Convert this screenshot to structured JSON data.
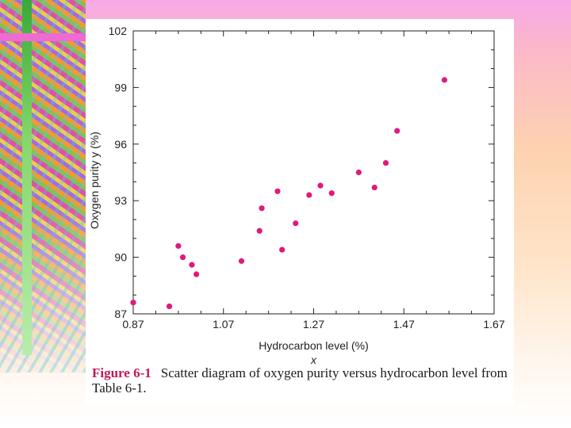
{
  "chart_data": {
    "type": "scatter",
    "xlabel": "Hydrocarbon level (%)",
    "xvar": "x",
    "ylabel": "Oxygen purity y (%)",
    "xlim": [
      0.87,
      1.67
    ],
    "ylim": [
      87,
      102
    ],
    "xticks": [
      "0.87",
      "1.07",
      "1.27",
      "1.47",
      "1.67"
    ],
    "yticks": [
      "87",
      "90",
      "93",
      "96",
      "99",
      "102"
    ],
    "grid": false,
    "marker_color": "#e0197d",
    "points": [
      {
        "x": 0.87,
        "y": 87.6
      },
      {
        "x": 0.95,
        "y": 87.4
      },
      {
        "x": 0.97,
        "y": 90.6
      },
      {
        "x": 0.98,
        "y": 90.0
      },
      {
        "x": 1.0,
        "y": 89.6
      },
      {
        "x": 1.01,
        "y": 89.1
      },
      {
        "x": 1.11,
        "y": 89.8
      },
      {
        "x": 1.15,
        "y": 91.4
      },
      {
        "x": 1.155,
        "y": 92.6
      },
      {
        "x": 1.19,
        "y": 93.5
      },
      {
        "x": 1.2,
        "y": 90.4
      },
      {
        "x": 1.23,
        "y": 91.8
      },
      {
        "x": 1.26,
        "y": 93.3
      },
      {
        "x": 1.285,
        "y": 93.8
      },
      {
        "x": 1.31,
        "y": 93.4
      },
      {
        "x": 1.37,
        "y": 94.5
      },
      {
        "x": 1.405,
        "y": 93.7
      },
      {
        "x": 1.43,
        "y": 95.0
      },
      {
        "x": 1.455,
        "y": 96.7
      },
      {
        "x": 1.56,
        "y": 99.4
      }
    ]
  },
  "caption": {
    "figure_label": "Figure 6-1",
    "text": "Scatter diagram of oxygen purity versus hydrocarbon level from Table 6-1."
  }
}
